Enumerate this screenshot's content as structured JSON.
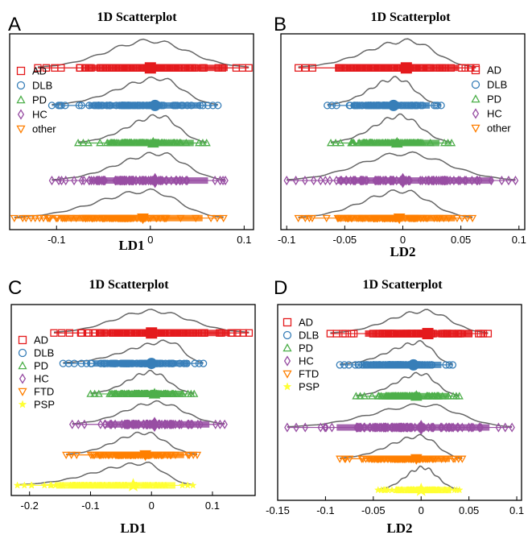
{
  "chart_data": [
    {
      "panel": "A",
      "type": "scatter",
      "title": "1D Scatterplot",
      "xlabel": "LD1",
      "xlim": [
        -0.15,
        0.11
      ],
      "xticks": [
        -0.1,
        0,
        0.1
      ],
      "xtick_labels": [
        "-0.1",
        "0",
        "0.1"
      ],
      "legend_placement": "left",
      "series": [
        {
          "name": "AD",
          "color": "#e41a1c",
          "marker": "square",
          "range": [
            -0.12,
            0.105
          ],
          "mean": 0.0,
          "kde_peak": 0.0
        },
        {
          "name": "DLB",
          "color": "#377eb8",
          "marker": "circle",
          "range": [
            -0.105,
            0.072
          ],
          "mean": 0.005,
          "kde_peak": 0.01
        },
        {
          "name": "PD",
          "color": "#4daf4a",
          "marker": "triangle-up",
          "range": [
            -0.077,
            0.06
          ],
          "mean": 0.003,
          "kde_peak": 0.01
        },
        {
          "name": "HC",
          "color": "#984ea3",
          "marker": "diamond",
          "range": [
            -0.105,
            0.08
          ],
          "mean": 0.005,
          "kde_peak": 0.01
        },
        {
          "name": "other",
          "color": "#ff7f00",
          "marker": "triangle-down",
          "range": [
            -0.145,
            0.078
          ],
          "mean": -0.008,
          "kde_peak": 0.0
        }
      ]
    },
    {
      "panel": "B",
      "type": "scatter",
      "title": "1D Scatterplot",
      "xlabel": "LD2",
      "xlim": [
        -0.105,
        0.105
      ],
      "xticks": [
        -0.1,
        -0.05,
        0,
        0.05,
        0.1
      ],
      "xtick_labels": [
        "-0.1",
        "-0.05",
        "0",
        "0.05",
        "0.1"
      ],
      "legend_placement": "right",
      "series": [
        {
          "name": "AD",
          "color": "#e41a1c",
          "marker": "square",
          "range": [
            -0.09,
            0.063
          ],
          "mean": 0.003,
          "kde_peak": 0.005
        },
        {
          "name": "DLB",
          "color": "#377eb8",
          "marker": "circle",
          "range": [
            -0.065,
            0.033
          ],
          "mean": -0.008,
          "kde_peak": -0.005
        },
        {
          "name": "PD",
          "color": "#4daf4a",
          "marker": "triangle-up",
          "range": [
            -0.062,
            0.042
          ],
          "mean": -0.005,
          "kde_peak": -0.002
        },
        {
          "name": "HC",
          "color": "#984ea3",
          "marker": "diamond",
          "range": [
            -0.1,
            0.097
          ],
          "mean": 0.0,
          "kde_peak": 0.002
        },
        {
          "name": "other",
          "color": "#ff7f00",
          "marker": "triangle-down",
          "range": [
            -0.09,
            0.06
          ],
          "mean": -0.003,
          "kde_peak": 0.0
        }
      ]
    },
    {
      "panel": "C",
      "type": "scatter",
      "title": "1D Scatterplot",
      "xlabel": "LD1",
      "xlim": [
        -0.23,
        0.17
      ],
      "xticks": [
        -0.2,
        -0.1,
        0,
        0.1
      ],
      "xtick_labels": [
        "-0.2",
        "-0.1",
        "0",
        "0.1"
      ],
      "legend_placement": "left",
      "series": [
        {
          "name": "AD",
          "color": "#e41a1c",
          "marker": "square",
          "range": [
            -0.16,
            0.16
          ],
          "mean": 0.0,
          "kde_peak": 0.0
        },
        {
          "name": "DLB",
          "color": "#377eb8",
          "marker": "circle",
          "range": [
            -0.145,
            0.085
          ],
          "mean": 0.0,
          "kde_peak": 0.03
        },
        {
          "name": "PD",
          "color": "#4daf4a",
          "marker": "triangle-up",
          "range": [
            -0.1,
            0.07
          ],
          "mean": 0.005,
          "kde_peak": 0.0
        },
        {
          "name": "HC",
          "color": "#984ea3",
          "marker": "diamond",
          "range": [
            -0.13,
            0.12
          ],
          "mean": 0.005,
          "kde_peak": 0.01
        },
        {
          "name": "FTD",
          "color": "#ff7f00",
          "marker": "triangle-down",
          "range": [
            -0.14,
            0.075
          ],
          "mean": -0.01,
          "kde_peak": -0.01
        },
        {
          "name": "PSP",
          "color": "#ffff33",
          "marker": "star",
          "range": [
            -0.22,
            0.068
          ],
          "mean": -0.03,
          "kde_peak": -0.01
        }
      ]
    },
    {
      "panel": "D",
      "type": "scatter",
      "title": "1D Scatterplot",
      "xlabel": "LD2",
      "xlim": [
        -0.15,
        0.105
      ],
      "xticks": [
        -0.15,
        -0.1,
        -0.05,
        0,
        0.05,
        0.1
      ],
      "xtick_labels": [
        "-0.15",
        "-0.1",
        "-0.05",
        "0",
        "0.05",
        "0.1"
      ],
      "legend_placement": "left",
      "series": [
        {
          "name": "AD",
          "color": "#e41a1c",
          "marker": "square",
          "range": [
            -0.095,
            0.07
          ],
          "mean": 0.007,
          "kde_peak": 0.005
        },
        {
          "name": "DLB",
          "color": "#377eb8",
          "marker": "circle",
          "range": [
            -0.085,
            0.033
          ],
          "mean": -0.008,
          "kde_peak": 0.0
        },
        {
          "name": "PD",
          "color": "#4daf4a",
          "marker": "triangle-up",
          "range": [
            -0.068,
            0.04
          ],
          "mean": -0.005,
          "kde_peak": 0.0
        },
        {
          "name": "HC",
          "color": "#984ea3",
          "marker": "diamond",
          "range": [
            -0.14,
            0.095
          ],
          "mean": 0.0,
          "kde_peak": 0.005
        },
        {
          "name": "FTD",
          "color": "#ff7f00",
          "marker": "triangle-down",
          "range": [
            -0.085,
            0.043
          ],
          "mean": -0.005,
          "kde_peak": 0.0
        },
        {
          "name": "PSP",
          "color": "#ffff33",
          "marker": "star",
          "range": [
            -0.045,
            0.04
          ],
          "mean": 0.0,
          "kde_peak": 0.002
        }
      ]
    }
  ]
}
